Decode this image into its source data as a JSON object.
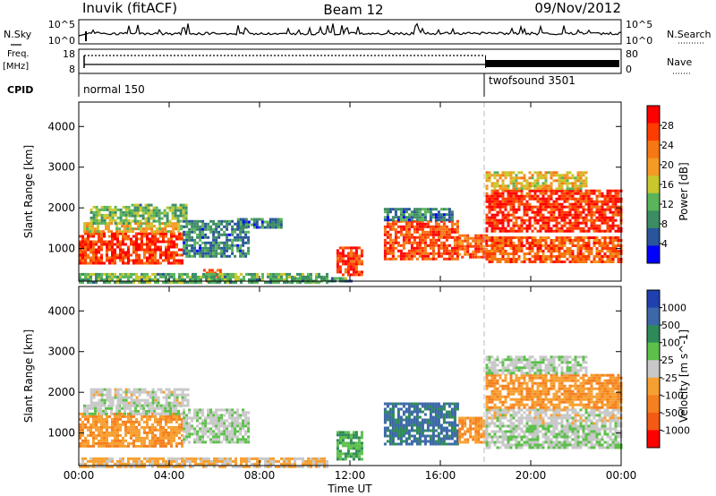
{
  "header": {
    "station": "Inuvik (fitACF)",
    "beam": "Beam 12",
    "date": "09/Nov/2012"
  },
  "nsky_panel": {
    "left_label": "N.Sky",
    "right_label": "N.Search",
    "left_ticks": [
      "10^5",
      "10^0"
    ],
    "right_ticks": [
      "10^5",
      "10^0"
    ]
  },
  "freq_panel": {
    "left_label_line1": "Freq.",
    "left_label_line2": "[MHz]",
    "right_label": "Nave",
    "left_ticks": [
      "18",
      "8"
    ],
    "right_ticks": [
      "80",
      "0"
    ]
  },
  "cpid": {
    "label": "CPID",
    "segments": [
      {
        "name": "normal 150",
        "start_hour": 0
      },
      {
        "name": "twofsound 3501",
        "start_hour": 18
      }
    ]
  },
  "x_axis": {
    "label": "Time UT",
    "ticks": [
      "00:00",
      "04:00",
      "08:00",
      "12:00",
      "16:00",
      "20:00",
      "00:00"
    ],
    "range_hours": [
      0,
      24
    ]
  },
  "colors": {
    "power_scale": [
      "#0000ff",
      "#28559b",
      "#3c8c64",
      "#5ab45a",
      "#c8c82d",
      "#f59a23",
      "#f57814",
      "#ff3c00",
      "#ff0000"
    ],
    "velocity_scale": [
      "#2040b0",
      "#3c68a8",
      "#2e8a58",
      "#5cc04a",
      "#c8c8c8",
      "#f7a032",
      "#f58020",
      "#f55a14",
      "#ff0000"
    ]
  },
  "chart_data": [
    {
      "type": "heatmap",
      "name": "power",
      "ylabel": "Slant Range [km]",
      "ylim": [
        200,
        4600
      ],
      "yticks": [
        1000,
        2000,
        3000,
        4000
      ],
      "xlim": [
        0,
        24
      ],
      "colorbar": {
        "label": "Power [dB]",
        "ticks": [
          "28",
          "24",
          "20",
          "16",
          "12",
          "8",
          "4"
        ],
        "range": [
          0,
          32
        ]
      },
      "regions": [
        {
          "t0": 0.0,
          "t1": 4.6,
          "r0": 650,
          "r1": 1400,
          "value": 27
        },
        {
          "t0": 0.2,
          "t1": 4.5,
          "r0": 1400,
          "r1": 1650,
          "value": 18
        },
        {
          "t0": 0.5,
          "t1": 2.2,
          "r0": 1650,
          "r1": 2050,
          "value": 13
        },
        {
          "t0": 2.2,
          "t1": 4.8,
          "r0": 1700,
          "r1": 2100,
          "value": 12
        },
        {
          "t0": 4.6,
          "t1": 7.5,
          "r0": 800,
          "r1": 1700,
          "value": 8
        },
        {
          "t0": 5.5,
          "t1": 6.3,
          "r0": 200,
          "r1": 500,
          "value": 27
        },
        {
          "t0": 0.0,
          "t1": 11.0,
          "r0": 200,
          "r1": 400,
          "value": 12
        },
        {
          "t0": 11.4,
          "t1": 12.5,
          "r0": 350,
          "r1": 1050,
          "value": 28
        },
        {
          "t0": 13.5,
          "t1": 16.8,
          "r0": 750,
          "r1": 1700,
          "value": 26
        },
        {
          "t0": 13.5,
          "t1": 16.5,
          "r0": 1700,
          "r1": 2000,
          "value": 8
        },
        {
          "t0": 16.8,
          "t1": 18.0,
          "r0": 800,
          "r1": 1350,
          "value": 25
        },
        {
          "t0": 18.0,
          "t1": 24.0,
          "r0": 650,
          "r1": 1300,
          "value": 25
        },
        {
          "t0": 18.0,
          "t1": 24.0,
          "r0": 1400,
          "r1": 2450,
          "value": 28
        },
        {
          "t0": 18.0,
          "t1": 22.5,
          "r0": 2450,
          "r1": 2900,
          "value": 18
        },
        {
          "t0": 9.5,
          "t1": 12.0,
          "r0": 200,
          "r1": 300,
          "value": 10
        },
        {
          "t0": 7.0,
          "t1": 9.0,
          "r0": 1500,
          "r1": 1750,
          "value": 8
        }
      ]
    },
    {
      "type": "heatmap",
      "name": "velocity",
      "ylabel": "Slant Range [km]",
      "ylim": [
        200,
        4600
      ],
      "yticks": [
        1000,
        2000,
        3000,
        4000
      ],
      "xlim": [
        0,
        24
      ],
      "colorbar": {
        "label": "Velocity [m s^-1]",
        "ticks": [
          "1000",
          "500",
          "100",
          "25",
          "-25",
          "-100",
          "-500",
          "-1000"
        ],
        "range": [
          -1000,
          1000
        ]
      },
      "regions": [
        {
          "t0": 0.0,
          "t1": 4.6,
          "r0": 650,
          "r1": 1500,
          "value": -300
        },
        {
          "t0": 0.2,
          "t1": 4.5,
          "r0": 1500,
          "r1": 1700,
          "value": 80
        },
        {
          "t0": 0.5,
          "t1": 4.8,
          "r0": 1700,
          "r1": 2100,
          "value": 0
        },
        {
          "t0": 4.6,
          "t1": 7.5,
          "r0": 800,
          "r1": 1600,
          "value": 80
        },
        {
          "t0": 11.4,
          "t1": 12.5,
          "r0": 350,
          "r1": 1050,
          "value": 300
        },
        {
          "t0": 13.5,
          "t1": 16.8,
          "r0": 750,
          "r1": 1750,
          "value": 600
        },
        {
          "t0": 16.8,
          "t1": 18.0,
          "r0": 800,
          "r1": 1400,
          "value": -300
        },
        {
          "t0": 18.0,
          "t1": 24.0,
          "r0": 1200,
          "r1": 1600,
          "value": 0
        },
        {
          "t0": 18.0,
          "t1": 24.0,
          "r0": 650,
          "r1": 1200,
          "value": 80
        },
        {
          "t0": 18.0,
          "t1": 24.0,
          "r0": 1600,
          "r1": 2450,
          "value": -300
        },
        {
          "t0": 18.0,
          "t1": 22.5,
          "r0": 2450,
          "r1": 2900,
          "value": 80
        },
        {
          "t0": 0.0,
          "t1": 11.0,
          "r0": 200,
          "r1": 400,
          "value": -150
        }
      ]
    }
  ]
}
